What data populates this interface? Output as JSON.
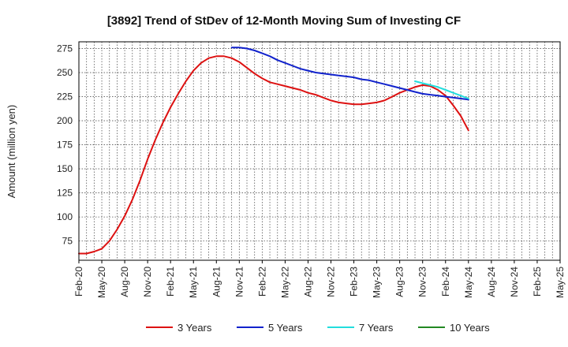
{
  "chart_data": {
    "type": "line",
    "title": "[3892]  Trend of StDev of 12-Month Moving Sum of Investing CF",
    "xlabel": "",
    "ylabel": "Amount (million yen)",
    "ylim": [
      55,
      282
    ],
    "yticks": [
      75,
      100,
      125,
      150,
      175,
      200,
      225,
      250,
      275
    ],
    "x_range_months": [
      "2020-02",
      "2025-05"
    ],
    "grid": true,
    "legend_position": "bottom",
    "x_tick_labels": [
      "Feb-20",
      "May-20",
      "Aug-20",
      "Nov-20",
      "Feb-21",
      "May-21",
      "Aug-21",
      "Nov-21",
      "Feb-22",
      "May-22",
      "Aug-22",
      "Nov-22",
      "Feb-23",
      "May-23",
      "Aug-23",
      "Nov-23",
      "Feb-24",
      "May-24",
      "Aug-24",
      "Nov-24",
      "Feb-25",
      "May-25"
    ],
    "series": [
      {
        "name": "3 Years",
        "color": "#dd1111",
        "x": [
          "2020-02",
          "2020-03",
          "2020-04",
          "2020-05",
          "2020-06",
          "2020-07",
          "2020-08",
          "2020-09",
          "2020-10",
          "2020-11",
          "2020-12",
          "2021-01",
          "2021-02",
          "2021-03",
          "2021-04",
          "2021-05",
          "2021-06",
          "2021-07",
          "2021-08",
          "2021-09",
          "2021-10",
          "2021-11",
          "2021-12",
          "2022-01",
          "2022-02",
          "2022-03",
          "2022-04",
          "2022-05",
          "2022-06",
          "2022-07",
          "2022-08",
          "2022-09",
          "2022-10",
          "2022-11",
          "2022-12",
          "2023-01",
          "2023-02",
          "2023-03",
          "2023-04",
          "2023-05",
          "2023-06",
          "2023-07",
          "2023-08",
          "2023-09",
          "2023-10",
          "2023-11",
          "2023-12",
          "2024-01",
          "2024-02",
          "2024-03",
          "2024-04",
          "2024-05"
        ],
        "values": [
          62,
          62,
          64,
          67,
          75,
          87,
          101,
          118,
          138,
          160,
          180,
          198,
          214,
          228,
          241,
          252,
          260,
          265,
          267,
          267,
          265,
          261,
          255,
          249,
          244,
          240,
          238,
          236,
          234,
          232,
          229,
          227,
          224,
          221,
          219,
          218,
          217,
          217,
          218,
          219,
          221,
          225,
          229,
          232,
          235,
          237,
          236,
          232,
          226,
          216,
          205,
          190
        ]
      },
      {
        "name": "5 Years",
        "color": "#1122cc",
        "x": [
          "2021-10",
          "2021-11",
          "2021-12",
          "2022-01",
          "2022-02",
          "2022-03",
          "2022-04",
          "2022-05",
          "2022-06",
          "2022-07",
          "2022-08",
          "2022-09",
          "2022-10",
          "2022-11",
          "2022-12",
          "2023-01",
          "2023-02",
          "2023-03",
          "2023-04",
          "2023-05",
          "2023-06",
          "2023-07",
          "2023-08",
          "2023-09",
          "2023-10",
          "2023-11",
          "2023-12",
          "2024-01",
          "2024-02",
          "2024-03",
          "2024-04",
          "2024-05"
        ],
        "values": [
          276,
          276,
          275,
          273,
          270,
          267,
          263,
          260,
          257,
          254,
          252,
          250,
          249,
          248,
          247,
          246,
          245,
          243,
          242,
          240,
          238,
          236,
          234,
          232,
          230,
          228,
          227,
          226,
          225,
          224,
          223,
          222
        ]
      },
      {
        "name": "7 Years",
        "color": "#22dddd",
        "x": [
          "2023-10",
          "2023-11",
          "2023-12",
          "2024-01",
          "2024-02",
          "2024-03",
          "2024-04",
          "2024-05"
        ],
        "values": [
          241,
          239,
          237,
          235,
          232,
          229,
          226,
          223
        ]
      },
      {
        "name": "10 Years",
        "color": "#228822",
        "x": [],
        "values": []
      }
    ]
  }
}
